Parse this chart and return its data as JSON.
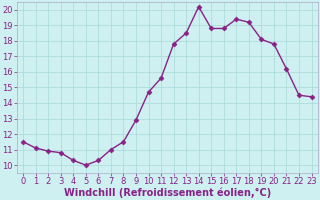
{
  "x": [
    0,
    1,
    2,
    3,
    4,
    5,
    6,
    7,
    8,
    9,
    10,
    11,
    12,
    13,
    14,
    15,
    16,
    17,
    18,
    19,
    20,
    21,
    22,
    23
  ],
  "y": [
    11.5,
    11.1,
    10.9,
    10.8,
    10.3,
    10.0,
    10.3,
    11.0,
    11.5,
    12.9,
    14.7,
    15.6,
    17.8,
    18.5,
    20.2,
    18.8,
    18.8,
    19.4,
    19.2,
    18.1,
    17.8,
    16.2,
    14.5,
    14.4
  ],
  "line_color": "#882288",
  "marker": "D",
  "marker_size": 2.5,
  "bg_color": "#cef0f0",
  "grid_color": "#aad8d8",
  "xlabel": "Windchill (Refroidissement éolien,°C)",
  "xlabel_fontsize": 7,
  "ylim": [
    9.5,
    20.5
  ],
  "xlim": [
    -0.5,
    23.5
  ],
  "yticks": [
    10,
    11,
    12,
    13,
    14,
    15,
    16,
    17,
    18,
    19,
    20
  ],
  "xticks": [
    0,
    1,
    2,
    3,
    4,
    5,
    6,
    7,
    8,
    9,
    10,
    11,
    12,
    13,
    14,
    15,
    16,
    17,
    18,
    19,
    20,
    21,
    22,
    23
  ],
  "tick_fontsize": 6,
  "line_width": 1.0,
  "label_color": "#882288",
  "spine_color": "#aaaacc"
}
